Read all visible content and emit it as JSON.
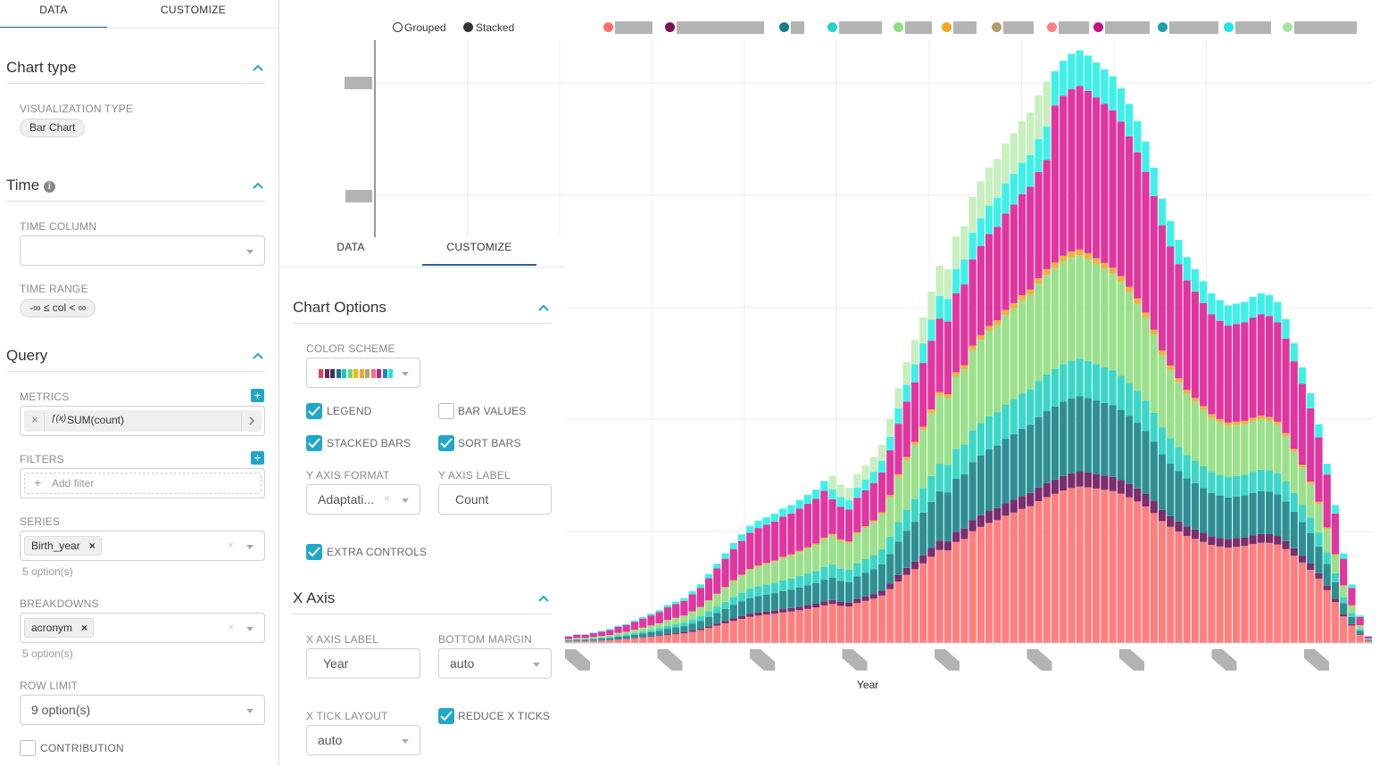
{
  "left_tabs": {
    "data": "DATA",
    "customize": "CUSTOMIZE"
  },
  "chart_type": {
    "title": "Chart type",
    "viz_label": "VISUALIZATION TYPE",
    "viz_value": "Bar Chart"
  },
  "time": {
    "title": "Time",
    "column_label": "TIME COLUMN",
    "range_label": "TIME RANGE",
    "range_value": "-∞ ≤ col < ∞"
  },
  "query": {
    "title": "Query",
    "metrics_label": "METRICS",
    "metric_value": "SUM(count)",
    "filters_label": "FILTERS",
    "filter_placeholder": "Add filter",
    "series_label": "SERIES",
    "series_value": "Birth_year",
    "series_options": "5 option(s)",
    "breakdowns_label": "BREAKDOWNS",
    "breakdown_value": "acronym",
    "breakdown_options": "5 option(s)",
    "row_limit_label": "ROW LIMIT",
    "row_limit_value": "9 option(s)",
    "contribution_label": "CONTRIBUTION"
  },
  "mid_tabs": {
    "data": "DATA",
    "customize": "CUSTOMIZE"
  },
  "chart_options": {
    "title": "Chart Options",
    "color_scheme_label": "COLOR SCHEME",
    "color_swatches": [
      "#e04355",
      "#7a1e5a",
      "#333366",
      "#1f6f8b",
      "#20c4c4",
      "#79d279",
      "#e5c100",
      "#f7a33a",
      "#b5a36f",
      "#ef7373",
      "#c4199b",
      "#1f8bb0",
      "#26e3e3"
    ],
    "legend_label": "LEGEND",
    "bar_values_label": "BAR VALUES",
    "stacked_bars_label": "STACKED BARS",
    "sort_bars_label": "SORT BARS",
    "y_axis_format_label": "Y AXIS FORMAT",
    "y_axis_format_value": "Adaptati...",
    "y_axis_label_label": "Y AXIS LABEL",
    "y_axis_label_value": "Count",
    "extra_controls_label": "EXTRA CONTROLS"
  },
  "x_axis": {
    "title": "X Axis",
    "x_axis_label_label": "X AXIS LABEL",
    "x_axis_label_value": "Year",
    "bottom_margin_label": "BOTTOM MARGIN",
    "bottom_margin_value": "auto",
    "x_tick_layout_label": "X TICK LAYOUT",
    "x_tick_layout_value": "auto",
    "reduce_x_ticks_label": "REDUCE X TICKS"
  },
  "chart_controls": {
    "grouped": "Grouped",
    "stacked": "Stacked"
  },
  "legend_colors": [
    "#ff6f69",
    "#7a1057",
    "#137e8c",
    "#26d4c4",
    "#8ae07e",
    "#f5a623",
    "#b39b6a",
    "#ff8080",
    "#c2137f",
    "#1f9cb0",
    "#20e8e8",
    "#a7e8a0"
  ],
  "chart_data": {
    "type": "bar",
    "stacked": true,
    "xlabel": "Year",
    "series_colors": [
      "#ff7f7f",
      "#7a2e6e",
      "#2e8f93",
      "#3dd6c6",
      "#9be08a",
      "#f0b040",
      "#e0369f",
      "#3ff0e8",
      "#c8efbf"
    ],
    "totals": [
      4,
      5,
      5,
      6,
      7,
      8,
      10,
      11,
      13,
      15,
      17,
      19,
      22,
      24,
      26,
      30,
      34,
      40,
      46,
      52,
      58,
      63,
      68,
      71,
      73,
      75,
      78,
      80,
      83,
      86,
      89,
      94,
      97,
      92,
      90,
      98,
      103,
      108,
      115,
      130,
      148,
      163,
      176,
      189,
      204,
      219,
      217,
      236,
      242,
      259,
      268,
      276,
      281,
      290,
      296,
      303,
      308,
      318,
      326,
      332,
      338,
      342,
      344,
      341,
      337,
      333,
      329,
      322,
      313,
      303,
      291,
      276,
      258,
      245,
      234,
      224,
      217,
      210,
      203,
      199,
      196,
      197,
      198,
      201,
      203,
      202,
      198,
      188,
      174,
      160,
      145,
      127,
      104,
      80,
      52,
      34,
      16,
      4
    ],
    "top_segment_fraction": 0.42
  }
}
